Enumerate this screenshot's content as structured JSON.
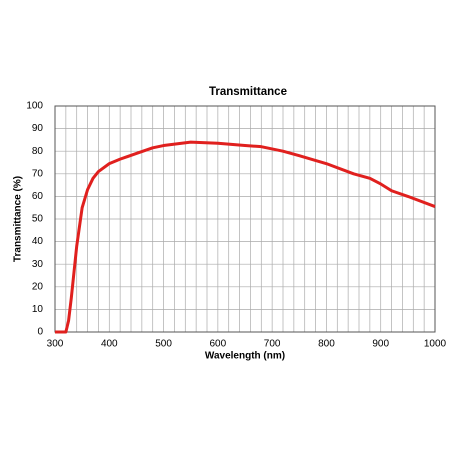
{
  "chart_data": {
    "type": "line",
    "title": "Transmittance",
    "x_label": "Wavelength (nm)",
    "y_label": "Transmittance (%)",
    "x": [
      300,
      320,
      325,
      330,
      340,
      350,
      360,
      370,
      380,
      400,
      420,
      450,
      480,
      500,
      550,
      600,
      650,
      680,
      700,
      720,
      750,
      800,
      850,
      880,
      900,
      920,
      950,
      1000
    ],
    "values": [
      0,
      0,
      5,
      15,
      38,
      55,
      63,
      68,
      71,
      74.5,
      76.5,
      79,
      81.5,
      82.5,
      84,
      83.5,
      82.5,
      82,
      81,
      80,
      78,
      74.5,
      70,
      68,
      65.5,
      62.5,
      60,
      55.5
    ],
    "color": "#e0201e",
    "xlim": [
      300,
      1000
    ],
    "ylim": [
      0,
      100
    ],
    "xticks": [
      300,
      400,
      500,
      600,
      700,
      800,
      900,
      1000
    ],
    "xminorticks": [
      320,
      340,
      360,
      380,
      420,
      440,
      460,
      480,
      520,
      540,
      560,
      580,
      620,
      640,
      660,
      680,
      720,
      740,
      760,
      780,
      820,
      840,
      860,
      880,
      920,
      940,
      960,
      980
    ],
    "yticks": [
      0,
      10,
      20,
      30,
      40,
      50,
      60,
      70,
      80,
      90,
      100
    ],
    "grid": true
  }
}
